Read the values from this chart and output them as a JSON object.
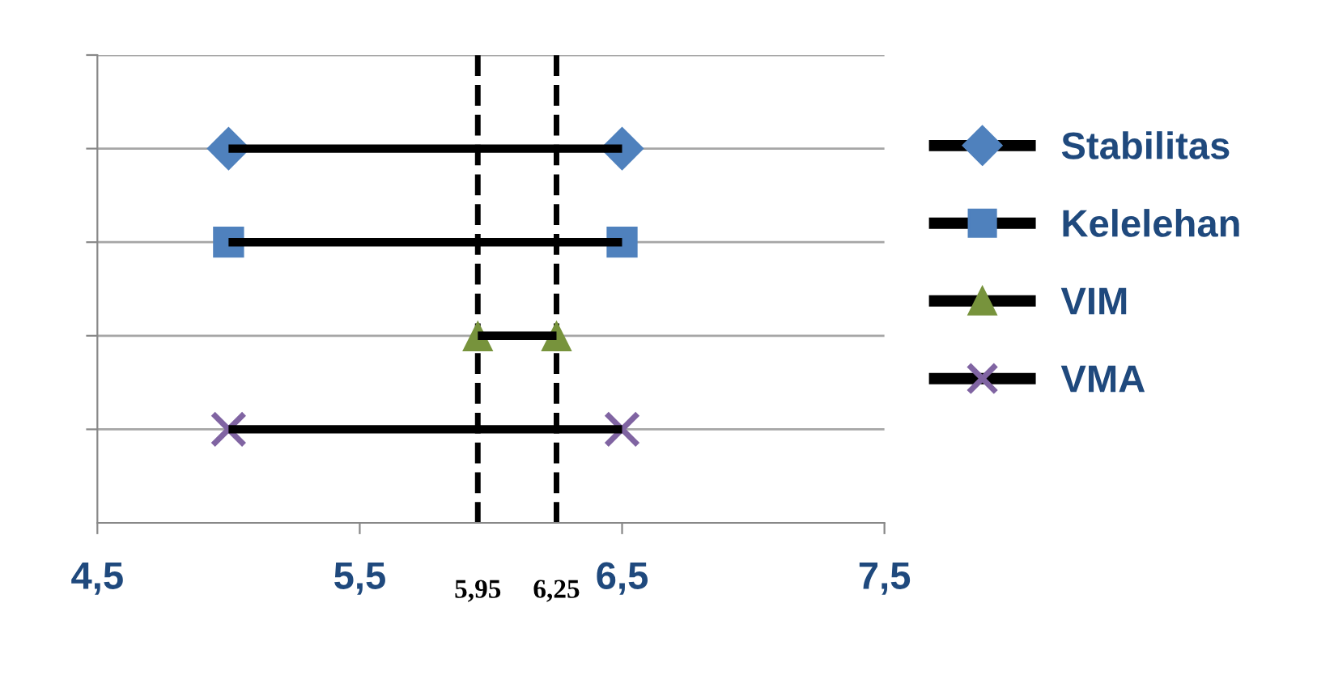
{
  "chart_data": {
    "type": "bar",
    "orientation": "horizontal",
    "categories": [
      null,
      null,
      null,
      null
    ],
    "series": [
      {
        "color": "#000000",
        "base": [
          5.0,
          5.0,
          5.95,
          5.0
        ],
        "values": [
          1.5,
          1.5,
          0.3,
          1.5
        ]
      },
      {
        "name": "Stabilitas",
        "type": "scatter",
        "color": "#4f81bd",
        "marker": "diamond",
        "values": [
          5.0,
          null,
          null,
          null
        ]
      },
      {
        "type": "scatter",
        "color": "#4f81bd",
        "marker": "diamond",
        "values": [
          6.5,
          null,
          null,
          null
        ]
      },
      {
        "name": "Kelelehan",
        "type": "scatter",
        "color": "#4f81bd",
        "marker": "square",
        "values": [
          null,
          5.0,
          null,
          null
        ]
      },
      {
        "type": "scatter",
        "color": "#4f81bd",
        "marker": "square",
        "values": [
          null,
          6.5,
          null,
          null
        ]
      },
      {
        "name": "VIM",
        "type": "scatter",
        "color": "#77933c",
        "marker": "triangle",
        "values": [
          null,
          null,
          5.95,
          null
        ]
      },
      {
        "type": "scatter",
        "color": "#77933c",
        "marker": "triangle",
        "values": [
          null,
          null,
          6.25,
          null
        ]
      },
      {
        "name": "VMA",
        "type": "scatter",
        "color": "#8064a2",
        "marker": "cross",
        "values": [
          null,
          null,
          null,
          5.0
        ]
      },
      {
        "type": "scatter",
        "color": "#8064a2",
        "marker": "cross",
        "values": [
          null,
          null,
          null,
          6.5
        ]
      }
    ],
    "xlim": [
      4.5,
      7.5
    ],
    "xticks": [
      {
        "value": 4.5,
        "label": "4,5"
      },
      {
        "value": 5.5,
        "label": "5,5"
      },
      {
        "value": 6.5,
        "label": "6,5"
      },
      {
        "value": 7.5,
        "label": "7,5"
      }
    ],
    "grid": "y",
    "legend": "right",
    "ref_lines": [
      {
        "axis": "x",
        "value": 5.95,
        "label": "5,95",
        "color": "#000000",
        "line_style": "dashed"
      },
      {
        "axis": "x",
        "value": 6.25,
        "label": "6,25",
        "color": "#000000",
        "line_style": "dashed"
      }
    ]
  }
}
